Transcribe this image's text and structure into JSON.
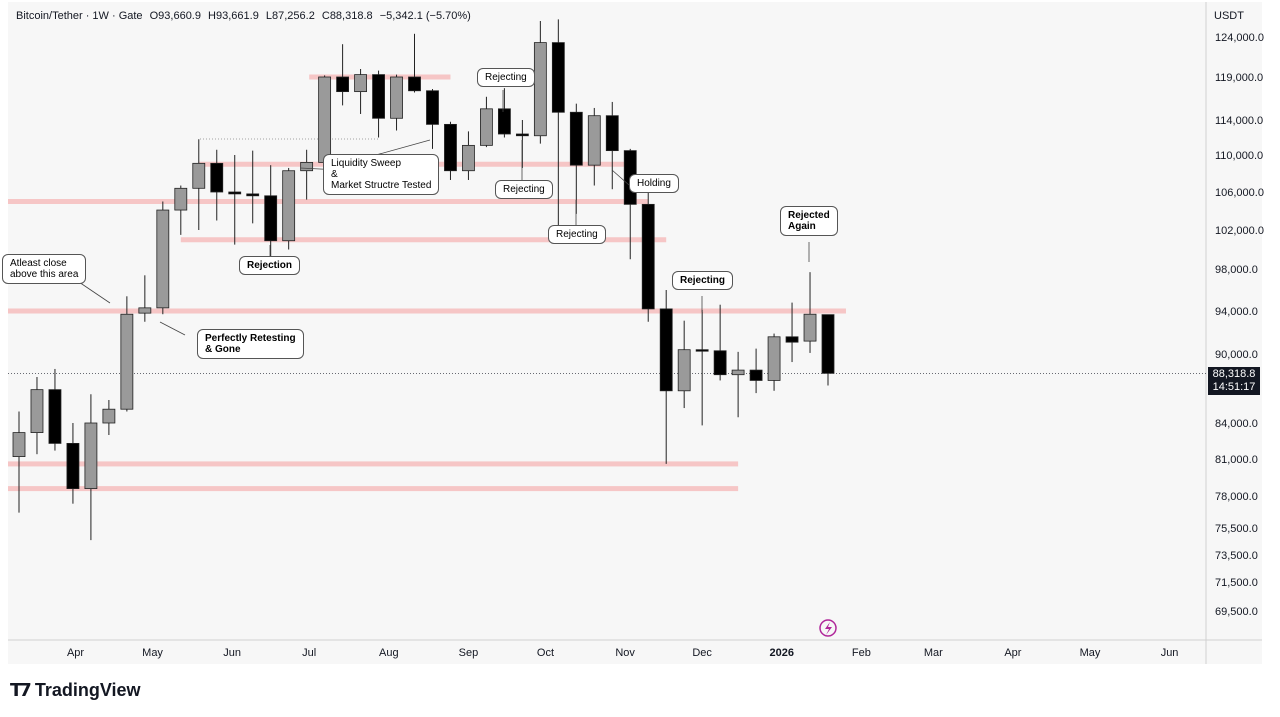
{
  "legend": {
    "symbol": "Bitcoin/Tether · 1W · Gate",
    "open": "O93,660.9",
    "high": "H93,661.9",
    "low": "L87,256.2",
    "close": "C88,318.8",
    "change": "−5,342.1 (−5.70%)"
  },
  "axis_unit": "USDT",
  "last_price": {
    "value": "88,318.8",
    "countdown": "14:51:17"
  },
  "brand": {
    "name": "TradingView"
  },
  "colors": {
    "up": "#9a9a9a",
    "down": "#000000",
    "zone": "#f5b6b6",
    "axis": "#131722"
  },
  "callouts": [
    {
      "text": "Atleast close\nabove this area"
    },
    {
      "text": "Perfectly Retesting\n& Gone"
    },
    {
      "text": "Rejection"
    },
    {
      "text": "Liquidity Sweep\n&\nMarket Structre Tested"
    },
    {
      "text": "Rejecting"
    },
    {
      "text": "Rejecting"
    },
    {
      "text": "Rejecting"
    },
    {
      "text": "Holding"
    },
    {
      "text": "Rejecting"
    },
    {
      "text": "Rejected\nAgain"
    }
  ],
  "chart_data": {
    "type": "candlestick",
    "y_ticks": [
      "124,000.0",
      "119,000.0",
      "114,000.0",
      "110,000.0",
      "106,000.0",
      "102,000.0",
      "98,000.0",
      "94,000.0",
      "90,000.0",
      "84,000.0",
      "81,000.0",
      "78,000.0",
      "75,500.0",
      "73,500.0",
      "71,500.0",
      "69,500.0"
    ],
    "y_tick_values": [
      124000,
      119000,
      114000,
      110000,
      106000,
      102000,
      98000,
      94000,
      90000,
      84000,
      81000,
      78000,
      75500,
      73500,
      71500,
      69500
    ],
    "x_ticks": [
      "Apr",
      "May",
      "Jun",
      "Jul",
      "Aug",
      "Sep",
      "Oct",
      "Nov",
      "Dec",
      "2026",
      "Feb",
      "Mar",
      "Apr",
      "May",
      "Jun"
    ],
    "x_tick_dates": [
      "2025-04-01",
      "2025-05-01",
      "2025-06-01",
      "2025-07-01",
      "2025-08-01",
      "2025-09-01",
      "2025-10-01",
      "2025-11-01",
      "2025-12-01",
      "2026-01-01",
      "2026-02-01",
      "2026-03-01",
      "2026-04-01",
      "2026-05-01",
      "2026-06-01"
    ],
    "bold_x_ticks": [
      "2026"
    ],
    "candles": [
      {
        "date": "2025-03-10",
        "o": 81200,
        "h": 85000,
        "l": 76700,
        "c": 83200
      },
      {
        "date": "2025-03-17",
        "o": 83200,
        "h": 88000,
        "l": 81400,
        "c": 86900
      },
      {
        "date": "2025-03-24",
        "o": 86900,
        "h": 88700,
        "l": 81700,
        "c": 82300
      },
      {
        "date": "2025-03-31",
        "o": 82300,
        "h": 84000,
        "l": 77400,
        "c": 78600
      },
      {
        "date": "2025-04-07",
        "o": 78600,
        "h": 86500,
        "l": 74600,
        "c": 84000
      },
      {
        "date": "2025-04-14",
        "o": 84000,
        "h": 86000,
        "l": 83000,
        "c": 85200
      },
      {
        "date": "2025-04-21",
        "o": 85200,
        "h": 95400,
        "l": 85000,
        "c": 93700
      },
      {
        "date": "2025-04-28",
        "o": 93800,
        "h": 97400,
        "l": 93000,
        "c": 94300
      },
      {
        "date": "2025-05-05",
        "o": 94300,
        "h": 105000,
        "l": 93700,
        "c": 104100
      },
      {
        "date": "2025-05-12",
        "o": 104100,
        "h": 106700,
        "l": 101500,
        "c": 106400
      },
      {
        "date": "2025-05-19",
        "o": 106400,
        "h": 111800,
        "l": 102000,
        "c": 109100
      },
      {
        "date": "2025-05-26",
        "o": 109100,
        "h": 110600,
        "l": 103000,
        "c": 106000
      },
      {
        "date": "2025-06-02",
        "o": 106000,
        "h": 110000,
        "l": 100500,
        "c": 105800
      },
      {
        "date": "2025-06-09",
        "o": 105800,
        "h": 110500,
        "l": 102700,
        "c": 105600
      },
      {
        "date": "2025-06-16",
        "o": 105600,
        "h": 108900,
        "l": 98200,
        "c": 100900
      },
      {
        "date": "2025-06-23",
        "o": 100900,
        "h": 108600,
        "l": 100000,
        "c": 108300
      },
      {
        "date": "2025-06-30",
        "o": 108300,
        "h": 110600,
        "l": 105200,
        "c": 109200
      },
      {
        "date": "2025-07-07",
        "o": 109200,
        "h": 119200,
        "l": 107500,
        "c": 119000
      },
      {
        "date": "2025-07-14",
        "o": 119000,
        "h": 123100,
        "l": 115700,
        "c": 117300
      },
      {
        "date": "2025-07-21",
        "o": 117300,
        "h": 120000,
        "l": 114700,
        "c": 119300
      },
      {
        "date": "2025-07-28",
        "o": 119300,
        "h": 119800,
        "l": 112000,
        "c": 114200
      },
      {
        "date": "2025-08-04",
        "o": 114200,
        "h": 119300,
        "l": 112800,
        "c": 119000
      },
      {
        "date": "2025-08-11",
        "o": 119000,
        "h": 124400,
        "l": 117200,
        "c": 117400
      },
      {
        "date": "2025-08-18",
        "o": 117400,
        "h": 117600,
        "l": 110700,
        "c": 113500
      },
      {
        "date": "2025-08-25",
        "o": 113500,
        "h": 113800,
        "l": 107300,
        "c": 108300
      },
      {
        "date": "2025-09-01",
        "o": 108300,
        "h": 112700,
        "l": 107300,
        "c": 111100
      },
      {
        "date": "2025-09-08",
        "o": 111100,
        "h": 116700,
        "l": 110900,
        "c": 115300
      },
      {
        "date": "2025-09-15",
        "o": 115300,
        "h": 117700,
        "l": 112000,
        "c": 112400
      },
      {
        "date": "2025-09-22",
        "o": 112400,
        "h": 114000,
        "l": 108600,
        "c": 112200
      },
      {
        "date": "2025-09-29",
        "o": 112200,
        "h": 126000,
        "l": 111300,
        "c": 123300
      },
      {
        "date": "2025-10-06",
        "o": 123300,
        "h": 126200,
        "l": 102000,
        "c": 114900
      },
      {
        "date": "2025-10-13",
        "o": 114900,
        "h": 115900,
        "l": 103700,
        "c": 108900
      },
      {
        "date": "2025-10-20",
        "o": 108900,
        "h": 115400,
        "l": 106700,
        "c": 114500
      },
      {
        "date": "2025-10-27",
        "o": 114500,
        "h": 116100,
        "l": 106300,
        "c": 110500
      },
      {
        "date": "2025-11-03",
        "o": 110500,
        "h": 110700,
        "l": 99000,
        "c": 104700
      },
      {
        "date": "2025-11-10",
        "o": 104700,
        "h": 107500,
        "l": 93000,
        "c": 94200
      },
      {
        "date": "2025-11-17",
        "o": 94200,
        "h": 96000,
        "l": 80600,
        "c": 86800
      },
      {
        "date": "2025-11-24",
        "o": 86800,
        "h": 93100,
        "l": 85300,
        "c": 90400
      },
      {
        "date": "2025-12-01",
        "o": 90400,
        "h": 94100,
        "l": 83800,
        "c": 90300
      },
      {
        "date": "2025-12-08",
        "o": 90300,
        "h": 94600,
        "l": 87700,
        "c": 88200
      },
      {
        "date": "2025-12-15",
        "o": 88200,
        "h": 90200,
        "l": 84500,
        "c": 88600
      },
      {
        "date": "2025-12-22",
        "o": 88600,
        "h": 90500,
        "l": 86600,
        "c": 87700
      },
      {
        "date": "2025-12-29",
        "o": 87700,
        "h": 91900,
        "l": 86800,
        "c": 91600
      },
      {
        "date": "2026-01-05",
        "o": 91600,
        "h": 94800,
        "l": 89300,
        "c": 91100
      },
      {
        "date": "2026-01-12",
        "o": 91200,
        "h": 97700,
        "l": 90100,
        "c": 93700
      },
      {
        "date": "2026-01-19",
        "o": 93660.9,
        "h": 93661.9,
        "l": 87256.2,
        "c": 88318.8
      }
    ],
    "zones": [
      {
        "price": 94000,
        "from": "2025-03-03",
        "to": "2026-01-26"
      },
      {
        "price": 105000,
        "from": "2025-03-03",
        "to": "2025-11-10"
      },
      {
        "price": 101000,
        "from": "2025-05-12",
        "to": "2025-11-17"
      },
      {
        "price": 109000,
        "from": "2025-05-19",
        "to": "2025-11-03"
      },
      {
        "price": 119000,
        "from": "2025-07-01",
        "to": "2025-08-25"
      },
      {
        "price": 80600,
        "from": "2025-03-03",
        "to": "2025-12-15"
      },
      {
        "price": 78600,
        "from": "2025-03-03",
        "to": "2025-12-15"
      }
    ],
    "y_range": [
      68000,
      127000
    ]
  }
}
